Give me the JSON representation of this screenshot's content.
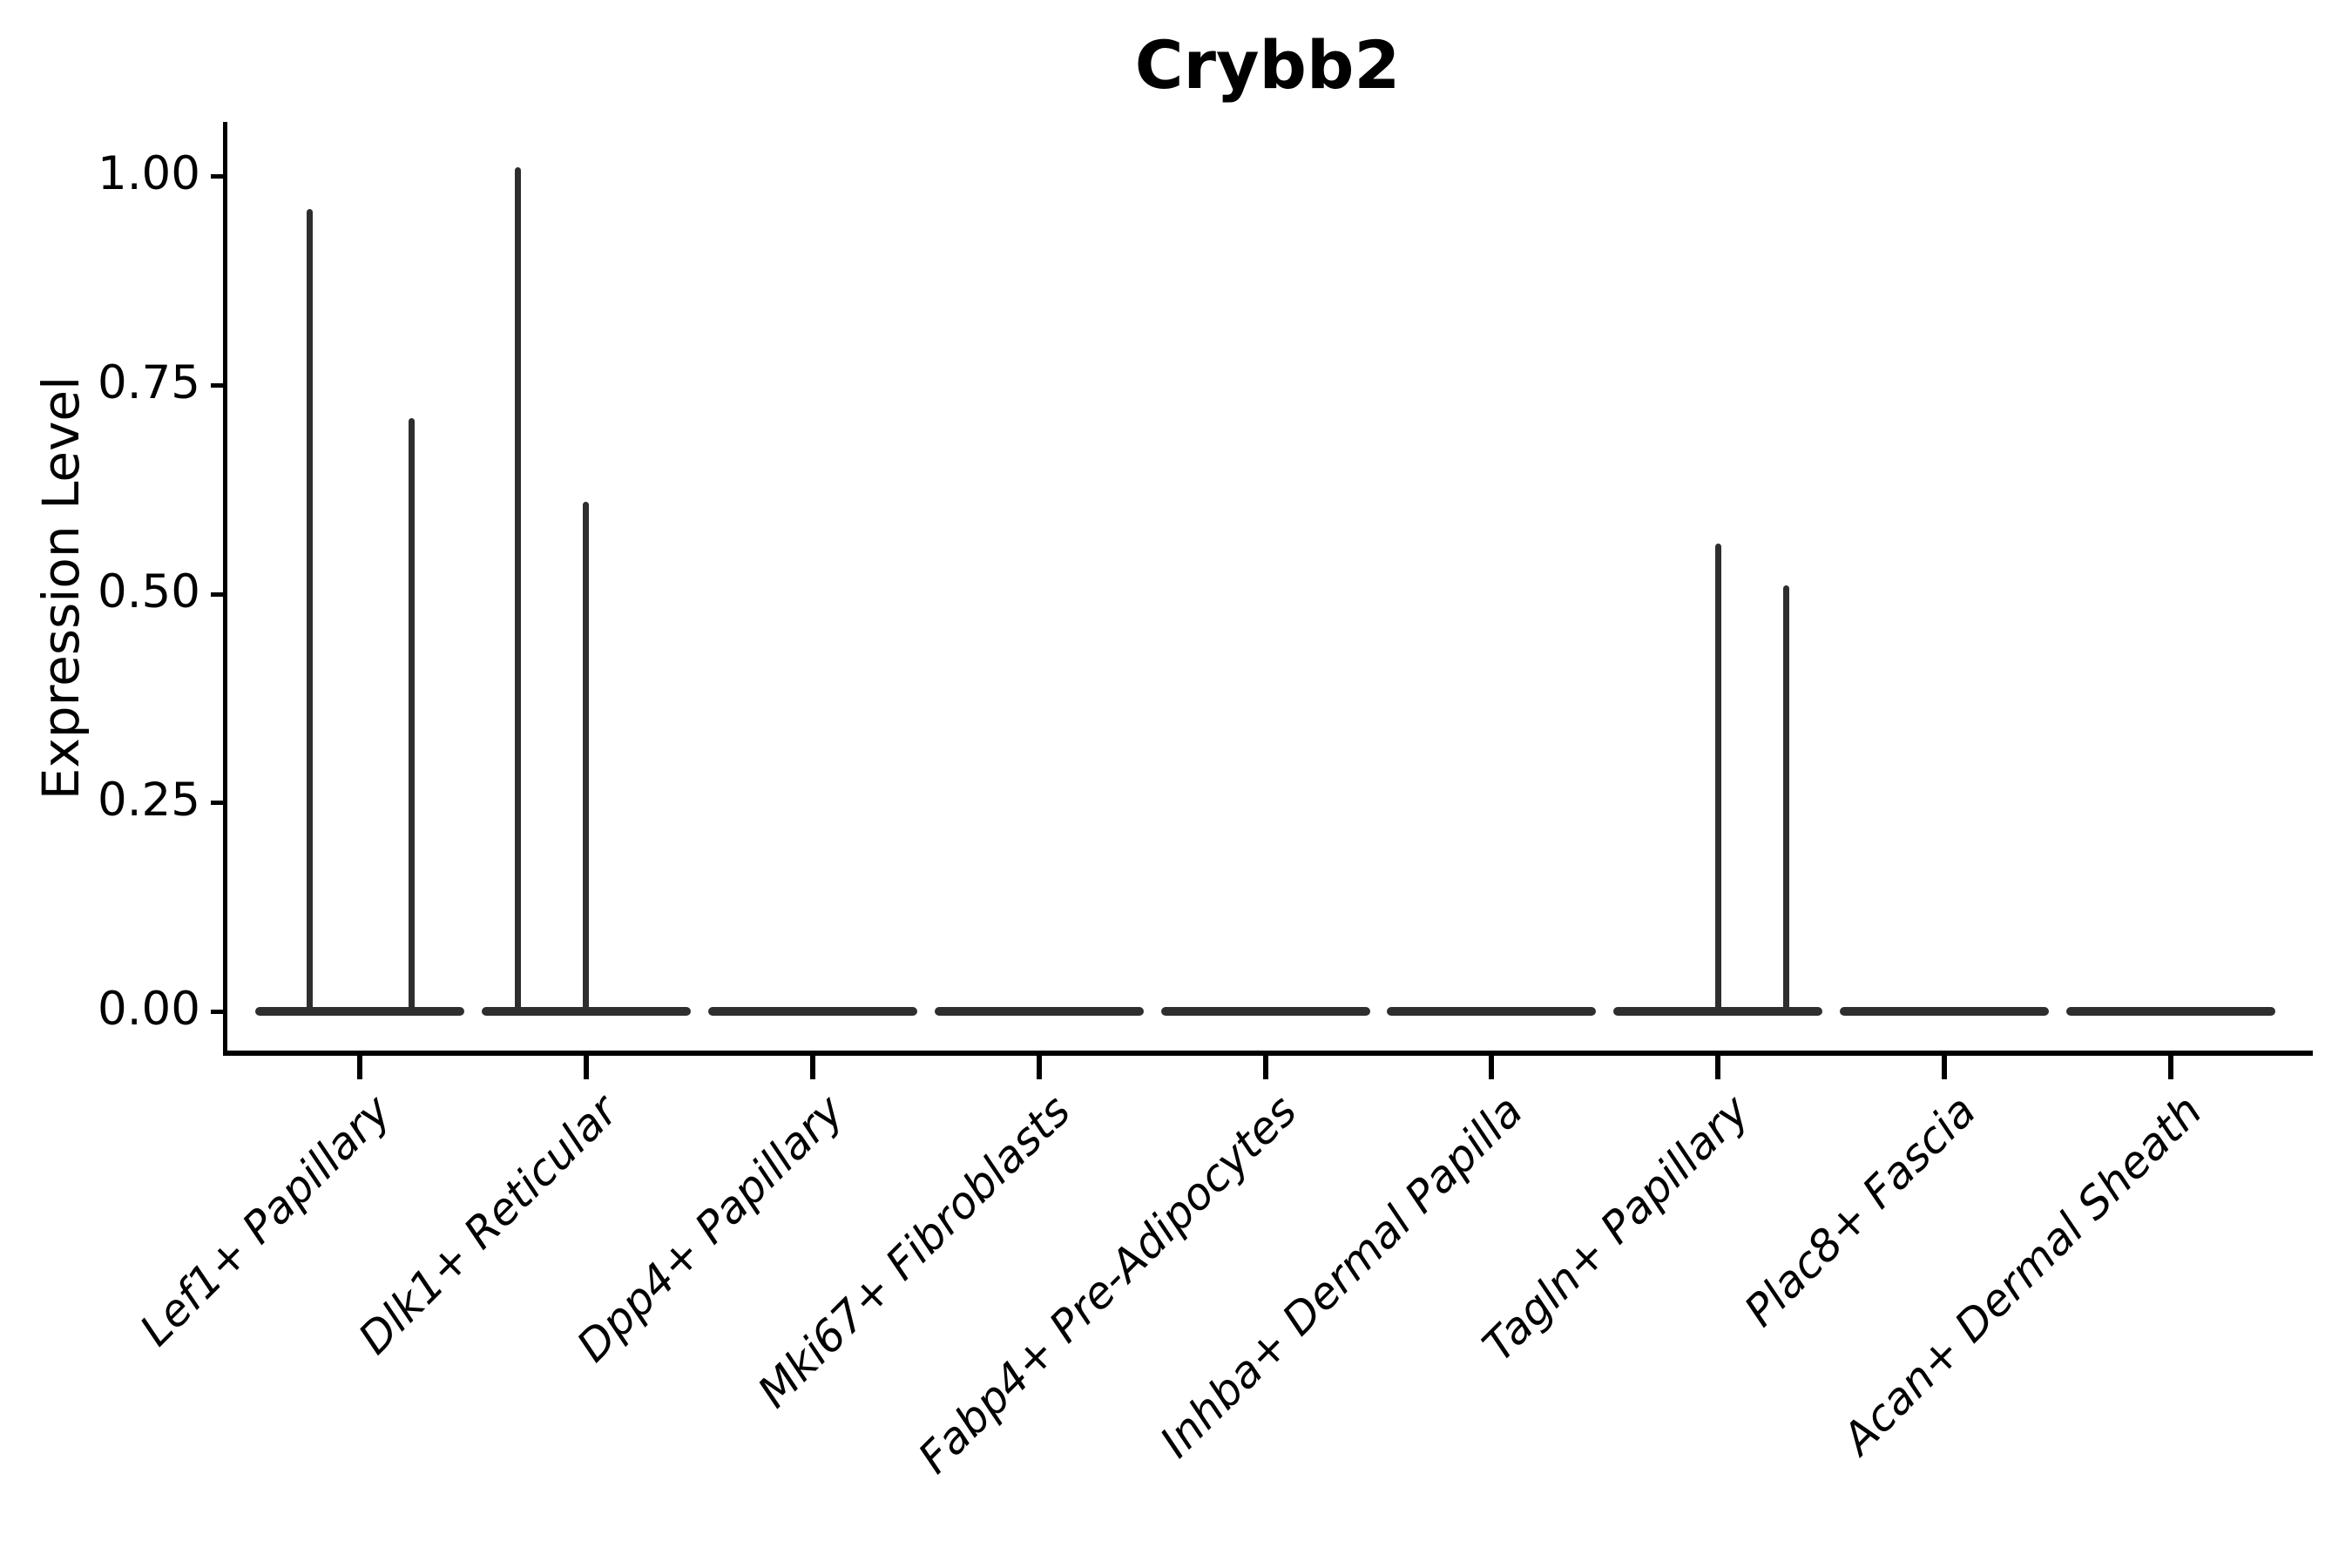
{
  "title": "Crybb2",
  "y_axis": {
    "label": "Expression Level",
    "tick_labels": [
      "0.00",
      "0.25",
      "0.50",
      "0.75",
      "1.00"
    ],
    "tick_values": [
      0.0,
      0.25,
      0.5,
      0.75,
      1.0
    ]
  },
  "x_axis": {
    "categories": [
      "Lef1+ Papillary",
      "Dlk1+ Reticular",
      "Dpp4+ Papillary",
      "Mki67+ Fibroblasts",
      "Fabp4+ Pre-Adipocytes",
      "Inhba+ Dermal Papilla",
      "Tagln+ Papillary",
      "Plac8+ Fascia",
      "Acan+ Dermal Sheath"
    ]
  },
  "chart_data": {
    "type": "violin",
    "title": "Crybb2",
    "xlabel": "",
    "ylabel": "Expression Level",
    "ylim": [
      0,
      1.05
    ],
    "yticks": [
      0.0,
      0.25,
      0.5,
      0.75,
      1.0
    ],
    "ytick_labels": [
      "0.00",
      "0.25",
      "0.50",
      "0.75",
      "1.00"
    ],
    "grid": false,
    "legend": "none",
    "categories": [
      "Lef1+ Papillary",
      "Dlk1+ Reticular",
      "Dpp4+ Papillary",
      "Mki67+ Fibroblasts",
      "Fabp4+ Pre-Adipocytes",
      "Inhba+ Dermal Papilla",
      "Tagln+ Papillary",
      "Plac8+ Fascia",
      "Acan+ Dermal Sheath"
    ],
    "violins": [
      {
        "category": "Lef1+ Papillary",
        "bulk_at_zero": true,
        "spikes": [
          {
            "offset_frac": -0.22,
            "max": 0.96
          },
          {
            "offset_frac": 0.23,
            "max": 0.71
          }
        ]
      },
      {
        "category": "Dlk1+ Reticular",
        "bulk_at_zero": true,
        "spikes": [
          {
            "offset_frac": -0.3,
            "max": 1.01
          },
          {
            "offset_frac": 0.0,
            "max": 0.61
          }
        ]
      },
      {
        "category": "Dpp4+ Papillary",
        "bulk_at_zero": true,
        "spikes": []
      },
      {
        "category": "Mki67+ Fibroblasts",
        "bulk_at_zero": true,
        "spikes": []
      },
      {
        "category": "Fabp4+ Pre-Adipocytes",
        "bulk_at_zero": true,
        "spikes": []
      },
      {
        "category": "Inhba+ Dermal Papilla",
        "bulk_at_zero": true,
        "spikes": []
      },
      {
        "category": "Tagln+ Papillary",
        "bulk_at_zero": true,
        "spikes": [
          {
            "offset_frac": 0.0,
            "max": 0.56
          },
          {
            "offset_frac": 0.3,
            "max": 0.51
          }
        ]
      },
      {
        "category": "Plac8+ Fascia",
        "bulk_at_zero": true,
        "spikes": []
      },
      {
        "category": "Acan+ Dermal Sheath",
        "bulk_at_zero": true,
        "spikes": []
      }
    ],
    "colors": {
      "violin": "#2e2e2e",
      "axis": "#000000",
      "text": "#000000",
      "background": "#ffffff"
    }
  }
}
